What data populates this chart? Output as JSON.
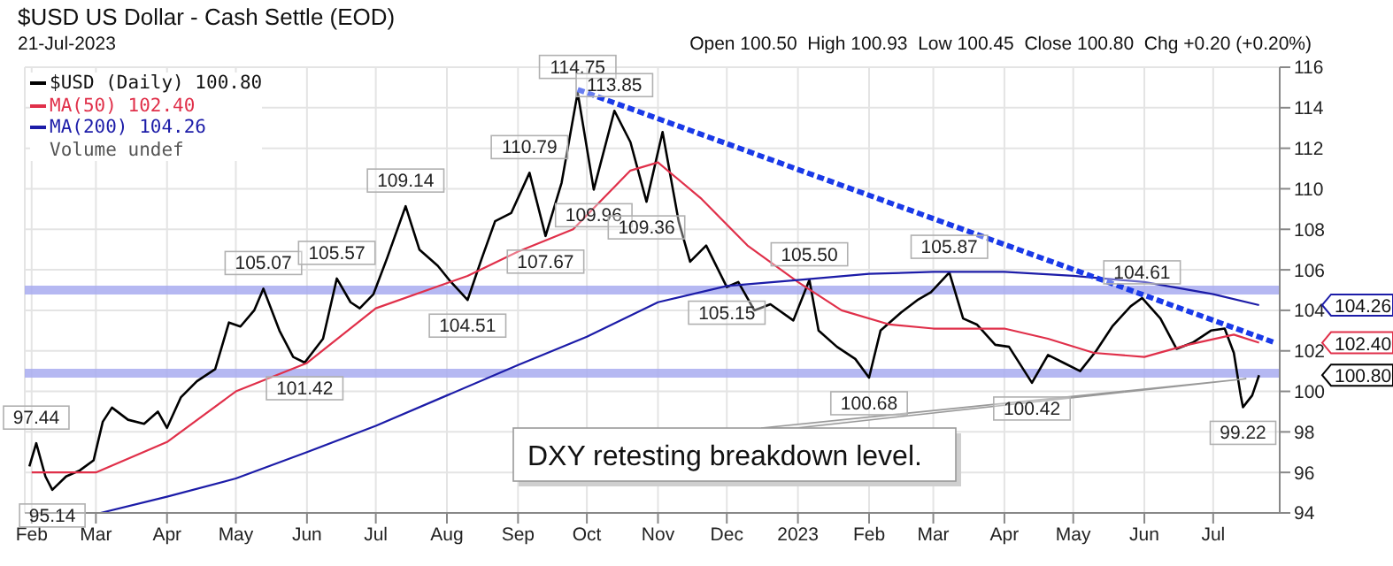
{
  "chart_data": {
    "type": "line",
    "title": "$USD US Dollar - Cash Settle (EOD)",
    "subtitle": "21-Jul-2023",
    "annotations": [
      "Open 100.50  High 100.93  Low 100.45  Close 100.80  Chg +0.20 (+0.20%)",
      "Volume undef",
      {
        "text": "97.44",
        "x": "2022-02-03",
        "y": 97.44
      },
      {
        "text": "95.14",
        "x": "2022-02-10",
        "y": 95.14
      },
      {
        "text": "105.07",
        "x": "2022-05-13",
        "y": 105.07
      },
      {
        "text": "101.42",
        "x": "2022-05-31",
        "y": 101.42
      },
      {
        "text": "105.57",
        "x": "2022-06-14",
        "y": 105.57
      },
      {
        "text": "109.14",
        "x": "2022-07-14",
        "y": 109.14
      },
      {
        "text": "104.51",
        "x": "2022-08-10",
        "y": 104.51
      },
      {
        "text": "110.79",
        "x": "2022-09-06",
        "y": 110.79
      },
      {
        "text": "107.67",
        "x": "2022-09-13",
        "y": 107.67
      },
      {
        "text": "114.75",
        "x": "2022-09-27",
        "y": 114.75
      },
      {
        "text": "109.96",
        "x": "2022-10-04",
        "y": 109.96
      },
      {
        "text": "113.85",
        "x": "2022-10-13",
        "y": 113.85
      },
      {
        "text": "109.36",
        "x": "2022-10-27",
        "y": 109.36
      },
      {
        "text": "105.15",
        "x": "2022-12-01",
        "y": 105.15
      },
      {
        "text": "105.50",
        "x": "2023-01-06",
        "y": 105.5
      },
      {
        "text": "100.68",
        "x": "2023-02-01",
        "y": 100.68
      },
      {
        "text": "105.87",
        "x": "2023-03-08",
        "y": 105.87
      },
      {
        "text": "100.42",
        "x": "2023-04-13",
        "y": 100.42
      },
      {
        "text": "104.61",
        "x": "2023-05-31",
        "y": 104.61
      },
      {
        "text": "99.22",
        "x": "2023-07-14",
        "y": 99.22
      },
      {
        "text": "DXY retesting breakdown level.",
        "x": "2023-07-17",
        "y": 100.8
      },
      "104.26",
      "102.40",
      "100.80"
    ],
    "xlim": [
      "2022-01-29",
      "2023-07-30"
    ],
    "xticks": [
      {
        "value": "2022-02-01",
        "label": "Feb"
      },
      {
        "value": "2022-03-01",
        "label": "Mar"
      },
      {
        "value": "2022-04-01",
        "label": "Apr"
      },
      {
        "value": "2022-05-01",
        "label": "May"
      },
      {
        "value": "2022-06-01",
        "label": "Jun"
      },
      {
        "value": "2022-07-01",
        "label": "Jul"
      },
      {
        "value": "2022-08-01",
        "label": "Aug"
      },
      {
        "value": "2022-09-01",
        "label": "Sep"
      },
      {
        "value": "2022-10-01",
        "label": "Oct"
      },
      {
        "value": "2022-11-01",
        "label": "Nov"
      },
      {
        "value": "2022-12-01",
        "label": "Dec"
      },
      {
        "value": "2023-01-01",
        "label": "2023"
      },
      {
        "value": "2023-02-01",
        "label": "Feb"
      },
      {
        "value": "2023-03-01",
        "label": "Mar"
      },
      {
        "value": "2023-04-01",
        "label": "Apr"
      },
      {
        "value": "2023-05-01",
        "label": "May"
      },
      {
        "value": "2023-06-01",
        "label": "Jun"
      },
      {
        "value": "2023-07-01",
        "label": "Jul"
      }
    ],
    "ylim": [
      94,
      116
    ],
    "yticks": [
      94,
      96,
      98,
      100,
      102,
      104,
      106,
      108,
      110,
      112,
      114,
      116
    ],
    "grid": true,
    "legend": "top left",
    "marker": "none",
    "ref_lines": [
      {
        "axis": "y",
        "value": 105.0,
        "color": "#a8acf0"
      },
      {
        "axis": "y",
        "value": 100.9,
        "color": "#a8acf0"
      }
    ],
    "series": [
      {
        "name": "$USD (Daily) 100.80",
        "color": "#000000",
        "x": [
          "2022-01-31",
          "2022-02-03",
          "2022-02-07",
          "2022-02-10",
          "2022-02-16",
          "2022-02-22",
          "2022-02-28",
          "2022-03-04",
          "2022-03-08",
          "2022-03-15",
          "2022-03-22",
          "2022-03-28",
          "2022-04-01",
          "2022-04-07",
          "2022-04-14",
          "2022-04-22",
          "2022-04-28",
          "2022-05-03",
          "2022-05-09",
          "2022-05-13",
          "2022-05-20",
          "2022-05-26",
          "2022-05-31",
          "2022-06-08",
          "2022-06-14",
          "2022-06-20",
          "2022-06-24",
          "2022-06-30",
          "2022-07-06",
          "2022-07-14",
          "2022-07-20",
          "2022-07-28",
          "2022-08-02",
          "2022-08-10",
          "2022-08-16",
          "2022-08-22",
          "2022-08-29",
          "2022-09-06",
          "2022-09-13",
          "2022-09-20",
          "2022-09-27",
          "2022-10-04",
          "2022-10-13",
          "2022-10-20",
          "2022-10-27",
          "2022-11-03",
          "2022-11-10",
          "2022-11-15",
          "2022-11-22",
          "2022-12-01",
          "2022-12-06",
          "2022-12-13",
          "2022-12-20",
          "2022-12-30",
          "2023-01-06",
          "2023-01-10",
          "2023-01-18",
          "2023-01-26",
          "2023-02-01",
          "2023-02-06",
          "2023-02-15",
          "2023-02-22",
          "2023-02-28",
          "2023-03-08",
          "2023-03-14",
          "2023-03-20",
          "2023-03-28",
          "2023-04-03",
          "2023-04-13",
          "2023-04-20",
          "2023-04-27",
          "2023-05-04",
          "2023-05-11",
          "2023-05-18",
          "2023-05-26",
          "2023-05-31",
          "2023-06-08",
          "2023-06-15",
          "2023-06-22",
          "2023-06-30",
          "2023-07-06",
          "2023-07-10",
          "2023-07-13",
          "2023-07-14",
          "2023-07-18",
          "2023-07-21"
        ],
        "values": [
          96.3,
          97.44,
          95.8,
          95.14,
          95.8,
          96.1,
          96.6,
          98.5,
          99.2,
          98.6,
          98.4,
          99.0,
          98.2,
          99.7,
          100.5,
          101.1,
          103.4,
          103.2,
          104.0,
          105.07,
          103.0,
          101.7,
          101.42,
          102.6,
          105.57,
          104.4,
          104.1,
          104.8,
          106.6,
          109.14,
          107.0,
          106.2,
          105.5,
          104.51,
          106.5,
          108.4,
          108.8,
          110.79,
          107.67,
          110.3,
          114.75,
          109.96,
          113.85,
          112.3,
          109.36,
          112.8,
          108.4,
          106.4,
          107.2,
          105.15,
          105.4,
          104.0,
          104.3,
          103.5,
          105.5,
          103.0,
          102.2,
          101.6,
          100.68,
          103.0,
          103.9,
          104.5,
          104.9,
          105.87,
          103.6,
          103.3,
          102.3,
          102.2,
          100.42,
          101.8,
          101.4,
          101.0,
          102.0,
          103.2,
          104.2,
          104.61,
          103.6,
          102.1,
          102.4,
          103.0,
          103.1,
          101.9,
          99.8,
          99.22,
          99.8,
          100.8
        ]
      },
      {
        "name": "MA(50) 102.40",
        "color": "#e0304a",
        "x": [
          "2022-02-01",
          "2022-03-01",
          "2022-04-01",
          "2022-05-01",
          "2022-06-01",
          "2022-07-01",
          "2022-08-10",
          "2022-09-01",
          "2022-09-25",
          "2022-10-20",
          "2022-11-01",
          "2022-11-20",
          "2022-12-10",
          "2023-01-01",
          "2023-01-20",
          "2023-02-10",
          "2023-03-01",
          "2023-04-01",
          "2023-04-20",
          "2023-05-10",
          "2023-06-01",
          "2023-06-20",
          "2023-07-10",
          "2023-07-21"
        ],
        "values": [
          96.0,
          96.0,
          97.5,
          100.0,
          101.4,
          104.1,
          105.7,
          106.9,
          108.0,
          110.9,
          111.3,
          109.5,
          107.2,
          105.4,
          104.0,
          103.3,
          103.1,
          103.1,
          102.6,
          101.9,
          101.7,
          102.3,
          102.8,
          102.4
        ]
      },
      {
        "name": "MA(200) 104.26",
        "color": "#1c1ca8",
        "x": [
          "2022-03-03",
          "2022-04-01",
          "2022-05-01",
          "2022-06-01",
          "2022-07-01",
          "2022-08-01",
          "2022-09-01",
          "2022-10-01",
          "2022-11-01",
          "2022-12-01",
          "2023-01-01",
          "2023-02-01",
          "2023-03-01",
          "2023-04-01",
          "2023-05-01",
          "2023-06-01",
          "2023-07-01",
          "2023-07-21"
        ],
        "values": [
          94.0,
          94.8,
          95.7,
          97.0,
          98.3,
          99.8,
          101.3,
          102.7,
          104.4,
          105.2,
          105.5,
          105.8,
          105.9,
          105.9,
          105.7,
          105.4,
          104.8,
          104.26
        ]
      },
      {
        "color": "#1a3ae8",
        "line_style": "dashed",
        "x": [
          "2022-09-27",
          "2023-07-28"
        ],
        "values": [
          114.9,
          102.4
        ]
      }
    ]
  }
}
